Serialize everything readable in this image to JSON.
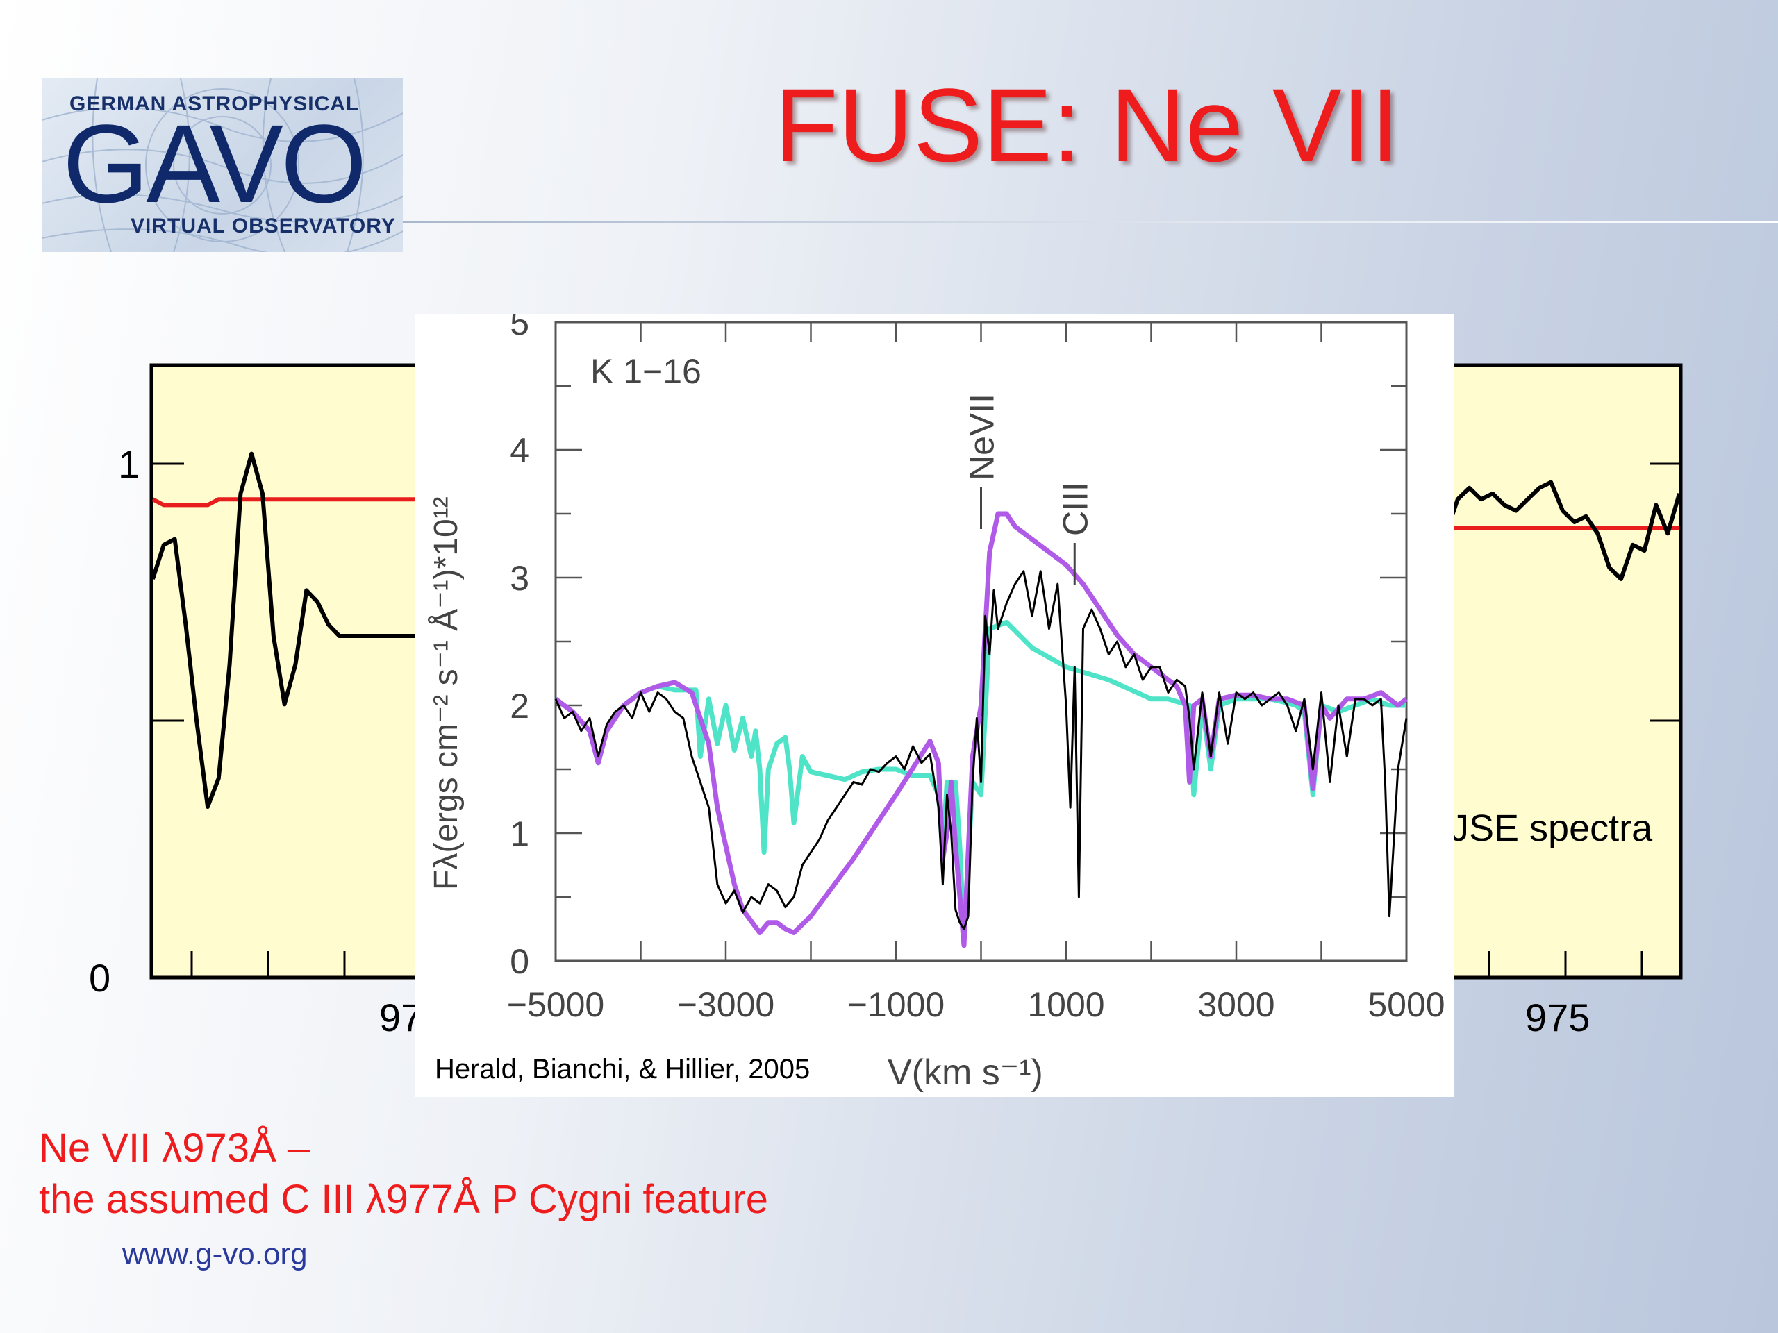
{
  "logo": {
    "top_text": "GERMAN ASTROPHYSICAL",
    "main_text": "GAVO",
    "bottom_text": "VIRTUAL OBSERVATORY"
  },
  "slide": {
    "title": "FUSE: Ne VII",
    "caption_line1": "Ne VII λ973Å –",
    "caption_line2": "the assumed  C III λ977Å  P Cygni feature",
    "footer_url": "www.g-vo.org",
    "right_partial_text": "JSE spectra"
  },
  "colors": {
    "title": "#ee1c1c",
    "background_panel": "#fffdd0",
    "model_red": "#e81e1e",
    "model_purple": "#b05ae8",
    "model_cyan": "#4fe3c8",
    "observed": "#000000"
  },
  "chart_data": [
    {
      "type": "line",
      "role": "background-left",
      "x": [
        0,
        0.04,
        0.08,
        0.12,
        0.16,
        0.2,
        0.24,
        0.28,
        0.32,
        0.36,
        0.4,
        0.44,
        0.48,
        0.52,
        0.56,
        0.6,
        0.64,
        0.68,
        0.72,
        0.76,
        0.8,
        0.84,
        0.88,
        0.92,
        0.96,
        1.0
      ],
      "series": [
        {
          "values": [
            0.84,
            0.83,
            0.83,
            0.83,
            0.83,
            0.83,
            0.84,
            0.84,
            0.84,
            0.84,
            0.84,
            0.84,
            0.84,
            0.84,
            0.84,
            0.84,
            0.84,
            0.84,
            0.84,
            0.84,
            0.84,
            0.84,
            0.84,
            0.84,
            0.84,
            0.84
          ],
          "color": "#e81e1e"
        },
        {
          "values": [
            0.7,
            0.76,
            0.77,
            0.62,
            0.45,
            0.3,
            0.35,
            0.55,
            0.85,
            0.92,
            0.85,
            0.6,
            0.48,
            0.55,
            0.68,
            0.66,
            0.62,
            0.6,
            0.6,
            0.6,
            0.6,
            0.6,
            0.6,
            0.6,
            0.6,
            0.6
          ],
          "color": "#000000"
        }
      ],
      "yticks": [
        "1",
        "0"
      ],
      "ylim": [
        0,
        1.2
      ],
      "xtick_partial": "97"
    },
    {
      "type": "line",
      "role": "background-right",
      "x": [
        0,
        0.05,
        0.1,
        0.15,
        0.2,
        0.25,
        0.3,
        0.35,
        0.4,
        0.45,
        0.5,
        0.55,
        0.6,
        0.65,
        0.7,
        0.75,
        0.8,
        0.85,
        0.9,
        0.95,
        1.0
      ],
      "series": [
        {
          "values": [
            0.79,
            0.79,
            0.79,
            0.79,
            0.79,
            0.79,
            0.79,
            0.79,
            0.79,
            0.79,
            0.79,
            0.79,
            0.79,
            0.79,
            0.79,
            0.79,
            0.79,
            0.79,
            0.79,
            0.79,
            0.79
          ],
          "color": "#e81e1e"
        },
        {
          "values": [
            0.78,
            0.84,
            0.86,
            0.84,
            0.85,
            0.83,
            0.82,
            0.84,
            0.86,
            0.87,
            0.82,
            0.8,
            0.81,
            0.78,
            0.72,
            0.7,
            0.76,
            0.75,
            0.83,
            0.78,
            0.85
          ],
          "color": "#000000"
        }
      ],
      "xticks": [
        "975"
      ],
      "ylim": [
        0,
        1.2
      ]
    },
    {
      "type": "line",
      "role": "inset",
      "annotation": "K  1−16",
      "line_labels": [
        "NeVII",
        "CIII"
      ],
      "xlabel": "V(km s⁻¹)",
      "ylabel": "Fλ(ergs cm⁻² s⁻¹ Å⁻¹)*10¹²",
      "xticks": [
        "−5000",
        "−3000",
        "−1000",
        "1000",
        "3000",
        "5000"
      ],
      "yticks": [
        "0",
        "1",
        "2",
        "3",
        "4",
        "5"
      ],
      "xlim": [
        -5000,
        5000
      ],
      "ylim": [
        0,
        5
      ],
      "credit": "Herald, Bianchi, & Hillier, 2005",
      "series": [
        {
          "color": "#4fe3c8",
          "x": [
            -5000,
            -4800,
            -4600,
            -4500,
            -4400,
            -4200,
            -4000,
            -3800,
            -3600,
            -3350,
            -3300,
            -3200,
            -3100,
            -3000,
            -2900,
            -2800,
            -2700,
            -2650,
            -2600,
            -2550,
            -2500,
            -2400,
            -2300,
            -2250,
            -2200,
            -2100,
            -2000,
            -1800,
            -1600,
            -1400,
            -1200,
            -1000,
            -800,
            -600,
            -500,
            -450,
            -400,
            -300,
            -250,
            -200,
            -100,
            0,
            100,
            300,
            600,
            1000,
            1500,
            2000,
            2200,
            2450,
            2500,
            2600,
            2700,
            2800,
            3000,
            3200,
            3400,
            3600,
            3700,
            3800,
            3900,
            4000,
            4200,
            4400,
            4600,
            4800,
            5000
          ],
          "values": [
            2.05,
            1.95,
            1.8,
            1.55,
            1.8,
            2.0,
            2.1,
            2.15,
            2.12,
            2.12,
            1.6,
            2.05,
            1.7,
            2.0,
            1.65,
            1.9,
            1.6,
            1.8,
            1.5,
            0.85,
            1.5,
            1.7,
            1.75,
            1.5,
            1.08,
            1.6,
            1.48,
            1.45,
            1.42,
            1.48,
            1.5,
            1.5,
            1.45,
            1.45,
            1.3,
            0.85,
            1.4,
            1.4,
            0.9,
            0.18,
            1.4,
            1.3,
            2.6,
            2.65,
            2.45,
            2.3,
            2.2,
            2.05,
            2.05,
            2.0,
            1.3,
            2.0,
            1.5,
            2.0,
            2.05,
            2.05,
            2.05,
            2.02,
            2.0,
            1.95,
            1.3,
            2.0,
            1.95,
            2.0,
            2.05,
            2.0,
            2.0
          ]
        },
        {
          "color": "#b05ae8",
          "x": [
            -5000,
            -4800,
            -4600,
            -4500,
            -4400,
            -4200,
            -4000,
            -3800,
            -3600,
            -3400,
            -3200,
            -3100,
            -3000,
            -2900,
            -2800,
            -2600,
            -2500,
            -2400,
            -2300,
            -2200,
            -2000,
            -1500,
            -1000,
            -600,
            -500,
            -450,
            -400,
            -350,
            -300,
            -200,
            -100,
            0,
            100,
            200,
            300,
            400,
            600,
            800,
            1000,
            1200,
            1400,
            1600,
            1800,
            2000,
            2200,
            2300,
            2400,
            2450,
            2500,
            2600,
            2700,
            2800,
            3000,
            3200,
            3400,
            3600,
            3800,
            3900,
            4000,
            4100,
            4300,
            4500,
            4700,
            4900,
            5000
          ],
          "values": [
            2.05,
            1.95,
            1.8,
            1.55,
            1.8,
            2.0,
            2.1,
            2.15,
            2.18,
            2.1,
            1.7,
            1.2,
            0.9,
            0.6,
            0.4,
            0.22,
            0.3,
            0.3,
            0.25,
            0.22,
            0.35,
            0.8,
            1.3,
            1.72,
            1.55,
            0.8,
            1.0,
            1.4,
            0.9,
            0.12,
            1.6,
            2.0,
            3.2,
            3.5,
            3.5,
            3.4,
            3.3,
            3.2,
            3.1,
            2.95,
            2.75,
            2.55,
            2.4,
            2.3,
            2.2,
            2.15,
            2.0,
            1.4,
            2.0,
            2.05,
            1.6,
            2.05,
            2.08,
            2.08,
            2.05,
            2.05,
            2.0,
            1.35,
            2.0,
            1.9,
            2.05,
            2.05,
            2.1,
            2.0,
            2.05
          ]
        },
        {
          "color": "#000000",
          "x": [
            -5000,
            -4900,
            -4800,
            -4700,
            -4600,
            -4500,
            -4400,
            -4300,
            -4200,
            -4100,
            -4000,
            -3900,
            -3800,
            -3700,
            -3600,
            -3500,
            -3400,
            -3300,
            -3200,
            -3100,
            -3000,
            -2900,
            -2800,
            -2700,
            -2600,
            -2500,
            -2400,
            -2300,
            -2200,
            -2100,
            -2000,
            -1900,
            -1800,
            -1700,
            -1600,
            -1500,
            -1400,
            -1300,
            -1200,
            -1100,
            -1000,
            -900,
            -800,
            -700,
            -600,
            -500,
            -450,
            -400,
            -350,
            -300,
            -250,
            -200,
            -150,
            -100,
            -50,
            0,
            50,
            100,
            150,
            200,
            300,
            400,
            500,
            600,
            700,
            800,
            900,
            1000,
            1050,
            1100,
            1150,
            1200,
            1300,
            1400,
            1500,
            1600,
            1700,
            1800,
            1900,
            2000,
            2100,
            2200,
            2300,
            2400,
            2450,
            2500,
            2600,
            2700,
            2800,
            2900,
            3000,
            3100,
            3200,
            3300,
            3400,
            3500,
            3600,
            3700,
            3800,
            3900,
            4000,
            4100,
            4200,
            4300,
            4400,
            4500,
            4600,
            4700,
            4750,
            4800,
            4900,
            5000
          ],
          "values": [
            2.05,
            1.9,
            1.95,
            1.8,
            1.9,
            1.6,
            1.85,
            1.95,
            2.0,
            1.9,
            2.1,
            1.95,
            2.1,
            2.05,
            1.95,
            1.9,
            1.6,
            1.4,
            1.2,
            0.6,
            0.45,
            0.55,
            0.38,
            0.5,
            0.45,
            0.6,
            0.55,
            0.42,
            0.5,
            0.75,
            0.85,
            0.95,
            1.1,
            1.2,
            1.3,
            1.4,
            1.38,
            1.5,
            1.48,
            1.55,
            1.6,
            1.5,
            1.68,
            1.55,
            1.62,
            1.2,
            0.6,
            1.3,
            1.0,
            0.4,
            0.3,
            0.25,
            0.35,
            1.4,
            1.9,
            1.4,
            2.7,
            2.4,
            2.9,
            2.6,
            2.8,
            2.95,
            3.05,
            2.7,
            3.05,
            2.6,
            2.95,
            2.0,
            1.2,
            2.3,
            0.5,
            2.6,
            2.75,
            2.6,
            2.4,
            2.5,
            2.3,
            2.4,
            2.2,
            2.3,
            2.3,
            2.1,
            2.2,
            2.15,
            1.9,
            1.5,
            2.1,
            1.6,
            2.1,
            1.7,
            2.1,
            2.05,
            2.1,
            2.0,
            2.05,
            2.1,
            2.0,
            1.8,
            2.05,
            1.5,
            2.1,
            1.4,
            2.0,
            1.6,
            2.05,
            2.05,
            2.0,
            2.05,
            1.4,
            0.35,
            1.5,
            1.9
          ]
        }
      ]
    }
  ]
}
